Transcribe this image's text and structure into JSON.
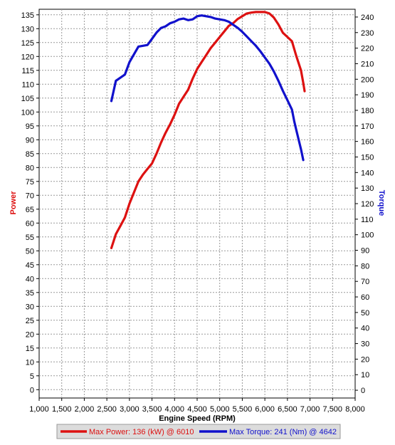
{
  "chart_data": {
    "type": "line",
    "xlabel": "Engine Speed (RPM)",
    "ylabel_left": "Power",
    "ylabel_right": "Torque",
    "xlim": [
      1000,
      8000
    ],
    "ylim_left": [
      -3,
      137
    ],
    "ylim_right": [
      -5,
      245
    ],
    "x_ticks": [
      1000,
      1500,
      2000,
      2500,
      3000,
      3500,
      4000,
      4500,
      5000,
      5500,
      6000,
      6500,
      7000,
      7500,
      8000
    ],
    "x_tick_labels": [
      "1,000",
      "1,500",
      "2,000",
      "2,500",
      "3,000",
      "3,500",
      "4,000",
      "4,500",
      "5,000",
      "5,500",
      "6,000",
      "6,500",
      "7,000",
      "7,500",
      "8,000"
    ],
    "y_left_ticks": [
      0,
      5,
      10,
      15,
      20,
      25,
      30,
      35,
      40,
      45,
      50,
      55,
      60,
      65,
      70,
      75,
      80,
      85,
      90,
      95,
      100,
      105,
      110,
      115,
      120,
      125,
      130,
      135
    ],
    "y_right_ticks": [
      0,
      10,
      20,
      30,
      40,
      50,
      60,
      70,
      80,
      90,
      100,
      110,
      120,
      130,
      140,
      150,
      160,
      170,
      180,
      190,
      200,
      210,
      220,
      230,
      240
    ],
    "grid": true,
    "legend_position": "bottom",
    "colors": {
      "power": "#dd1111",
      "torque": "#1111cc",
      "grid": "#999999",
      "plot_bg": "#ffffff"
    },
    "series": [
      {
        "name": "Power",
        "axis": "left",
        "color": "#dd1111",
        "legend": "Max Power: 136 (kW) @ 6010",
        "points": [
          [
            2600,
            51
          ],
          [
            2700,
            56
          ],
          [
            2800,
            59
          ],
          [
            2900,
            62
          ],
          [
            3000,
            67
          ],
          [
            3100,
            71
          ],
          [
            3200,
            75
          ],
          [
            3300,
            77.5
          ],
          [
            3400,
            79.5
          ],
          [
            3500,
            81.5
          ],
          [
            3600,
            85
          ],
          [
            3700,
            89
          ],
          [
            3800,
            92.5
          ],
          [
            3900,
            95.5
          ],
          [
            4000,
            99
          ],
          [
            4100,
            103
          ],
          [
            4200,
            105.5
          ],
          [
            4300,
            108
          ],
          [
            4400,
            112
          ],
          [
            4500,
            115.5
          ],
          [
            4600,
            118
          ],
          [
            4700,
            120.5
          ],
          [
            4800,
            123
          ],
          [
            4900,
            125
          ],
          [
            5000,
            127
          ],
          [
            5100,
            129
          ],
          [
            5200,
            131
          ],
          [
            5300,
            132
          ],
          [
            5400,
            133.5
          ],
          [
            5500,
            134.5
          ],
          [
            5600,
            135.5
          ],
          [
            5700,
            135.8
          ],
          [
            5800,
            136
          ],
          [
            5900,
            136
          ],
          [
            6000,
            136
          ],
          [
            6100,
            135.5
          ],
          [
            6200,
            134
          ],
          [
            6300,
            131.5
          ],
          [
            6400,
            128.5
          ],
          [
            6500,
            127
          ],
          [
            6600,
            125.5
          ],
          [
            6700,
            120
          ],
          [
            6800,
            115
          ],
          [
            6850,
            110.5
          ],
          [
            6880,
            107.5
          ]
        ]
      },
      {
        "name": "Torque",
        "axis": "right",
        "color": "#1111cc",
        "legend": "Max Torque: 241 (Nm) @ 4642",
        "points": [
          [
            2600,
            186
          ],
          [
            2700,
            199
          ],
          [
            2800,
            201
          ],
          [
            2900,
            203
          ],
          [
            3000,
            211
          ],
          [
            3100,
            216
          ],
          [
            3200,
            221
          ],
          [
            3300,
            221.5
          ],
          [
            3400,
            222
          ],
          [
            3500,
            226
          ],
          [
            3600,
            230
          ],
          [
            3700,
            233
          ],
          [
            3800,
            234
          ],
          [
            3900,
            236
          ],
          [
            4000,
            237
          ],
          [
            4100,
            238.5
          ],
          [
            4200,
            239
          ],
          [
            4300,
            238
          ],
          [
            4400,
            238.5
          ],
          [
            4500,
            240.5
          ],
          [
            4600,
            241
          ],
          [
            4700,
            240.5
          ],
          [
            4800,
            240
          ],
          [
            4900,
            239
          ],
          [
            5000,
            238.5
          ],
          [
            5100,
            238
          ],
          [
            5200,
            237
          ],
          [
            5300,
            235
          ],
          [
            5400,
            233
          ],
          [
            5500,
            230.5
          ],
          [
            5600,
            227.5
          ],
          [
            5700,
            224.5
          ],
          [
            5800,
            221.5
          ],
          [
            5900,
            218
          ],
          [
            6000,
            214
          ],
          [
            6100,
            210
          ],
          [
            6200,
            205
          ],
          [
            6300,
            199
          ],
          [
            6400,
            192.5
          ],
          [
            6500,
            186.5
          ],
          [
            6600,
            180.5
          ],
          [
            6650,
            173
          ],
          [
            6700,
            167
          ],
          [
            6750,
            161
          ],
          [
            6800,
            155
          ],
          [
            6850,
            148
          ]
        ]
      }
    ]
  }
}
